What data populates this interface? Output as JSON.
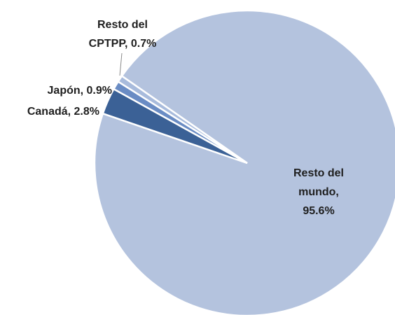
{
  "chart_data": {
    "type": "pie",
    "labels": [
      [
        "Resto del",
        "mundo,",
        "95.6%"
      ],
      [
        "Canadá, 2.8%"
      ],
      [
        "Japón, 0.9%"
      ],
      [
        "Resto del",
        "CPTPP, 0.7%"
      ]
    ],
    "values": [
      95.6,
      2.8,
      0.9,
      0.7
    ],
    "colors": [
      "#b4c3de",
      "#3b6196",
      "#6a8cc4",
      "#a8bbdc"
    ]
  }
}
